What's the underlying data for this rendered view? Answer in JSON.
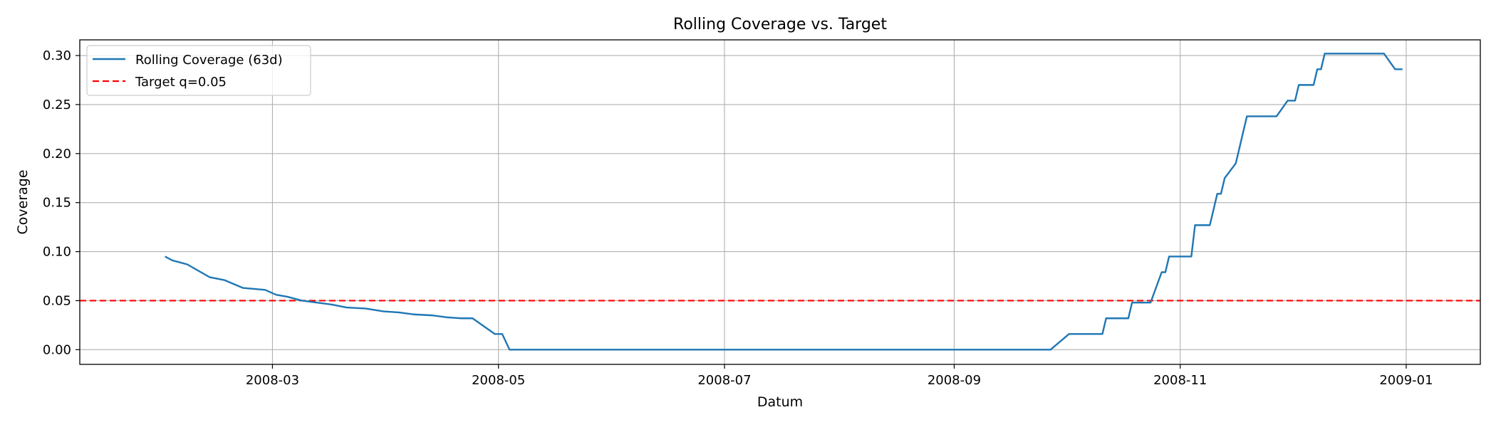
{
  "chart_data": {
    "type": "line",
    "title": "Rolling Coverage vs. Target",
    "xlabel": "Datum",
    "ylabel": "Coverage",
    "x_axis_type": "date",
    "xlim": [
      "2008-01-09",
      "2009-01-21"
    ],
    "ylim": [
      -0.015,
      0.316
    ],
    "x_ticks": [
      "2008-03-01",
      "2008-05-01",
      "2008-07-01",
      "2008-09-01",
      "2008-11-01",
      "2009-01-01"
    ],
    "x_tick_labels": [
      "2008-03",
      "2008-05",
      "2008-07",
      "2008-09",
      "2008-11",
      "2009-01"
    ],
    "y_ticks": [
      0.0,
      0.05,
      0.1,
      0.15,
      0.2,
      0.25,
      0.3
    ],
    "y_tick_labels": [
      "0.00",
      "0.05",
      "0.10",
      "0.15",
      "0.20",
      "0.25",
      "0.30"
    ],
    "grid": true,
    "legend_position": "top-left",
    "series": [
      {
        "name": "Rolling Coverage (63d)",
        "color": "#1f77b4",
        "style": "solid",
        "points": [
          [
            "2008-02-01",
            0.095
          ],
          [
            "2008-02-03",
            0.091
          ],
          [
            "2008-02-07",
            0.087
          ],
          [
            "2008-02-13",
            0.074
          ],
          [
            "2008-02-17",
            0.071
          ],
          [
            "2008-02-22",
            0.063
          ],
          [
            "2008-02-28",
            0.061
          ],
          [
            "2008-03-03",
            0.056
          ],
          [
            "2008-03-07",
            0.054
          ],
          [
            "2008-03-12",
            0.049
          ],
          [
            "2008-03-17",
            0.047
          ],
          [
            "2008-03-23",
            0.043
          ],
          [
            "2008-03-28",
            0.042
          ],
          [
            "2008-04-03",
            0.039
          ],
          [
            "2008-04-08",
            0.038
          ],
          [
            "2008-04-12",
            0.036
          ],
          [
            "2008-04-18",
            0.035
          ],
          [
            "2008-04-23",
            0.033
          ],
          [
            "2008-04-28",
            0.032
          ],
          [
            "2008-04-30",
            0.032
          ],
          [
            "2008-04-07",
            0.032
          ],
          [
            "2008-04-10",
            0.032
          ],
          [
            "2008-04-13",
            0.032
          ]
        ],
        "segments": [
          [
            [
              "2008-02-01",
              0.095
            ],
            [
              "2008-02-03",
              0.091
            ],
            [
              "2008-02-07",
              0.087
            ],
            [
              "2008-02-13",
              0.074
            ],
            [
              "2008-02-17",
              0.071
            ],
            [
              "2008-02-22",
              0.063
            ],
            [
              "2008-02-28",
              0.061
            ],
            [
              "2008-03-02",
              0.056
            ],
            [
              "2008-03-05",
              0.054
            ],
            [
              "2008-03-09",
              0.05
            ],
            [
              "2008-03-13",
              0.048
            ],
            [
              "2008-03-17",
              0.046
            ],
            [
              "2008-03-21",
              0.043
            ],
            [
              "2008-03-26",
              0.042
            ],
            [
              "2008-03-31",
              0.039
            ],
            [
              "2008-04-04",
              0.038
            ],
            [
              "2008-04-08",
              0.036
            ],
            [
              "2008-04-13",
              0.035
            ],
            [
              "2008-04-17",
              0.033
            ],
            [
              "2008-04-21",
              0.032
            ],
            [
              "2008-04-24",
              0.032
            ],
            [
              "2008-04-30",
              0.016
            ],
            [
              "2008-05-02",
              0.016
            ],
            [
              "2008-05-04",
              0.0
            ],
            [
              "2008-09-27",
              0.0
            ],
            [
              "2008-10-02",
              0.016
            ],
            [
              "2008-10-11",
              0.016
            ],
            [
              "2008-10-12",
              0.032
            ],
            [
              "2008-10-18",
              0.032
            ],
            [
              "2008-10-19",
              0.048
            ],
            [
              "2008-10-24",
              0.048
            ],
            [
              "2008-10-27",
              0.079
            ],
            [
              "2008-10-28",
              0.079
            ],
            [
              "2008-10-29",
              0.095
            ],
            [
              "2008-11-04",
              0.095
            ],
            [
              "2008-11-05",
              0.127
            ],
            [
              "2008-11-09",
              0.127
            ],
            [
              "2008-11-11",
              0.159
            ],
            [
              "2008-11-12",
              0.159
            ],
            [
              "2008-11-13",
              0.175
            ],
            [
              "2008-11-16",
              0.19
            ],
            [
              "2008-11-19",
              0.238
            ],
            [
              "2008-11-27",
              0.238
            ],
            [
              "2008-11-30",
              0.254
            ],
            [
              "2008-12-02",
              0.254
            ],
            [
              "2008-12-03",
              0.27
            ],
            [
              "2008-12-07",
              0.27
            ],
            [
              "2008-12-08",
              0.286
            ],
            [
              "2008-12-09",
              0.286
            ],
            [
              "2008-12-10",
              0.302
            ],
            [
              "2008-12-26",
              0.302
            ],
            [
              "2008-12-29",
              0.286
            ],
            [
              "2008-12-31",
              0.286
            ]
          ]
        ]
      },
      {
        "name": "Target q=0.05",
        "color": "#ff0000",
        "style": "dashed",
        "value": 0.05
      }
    ]
  }
}
